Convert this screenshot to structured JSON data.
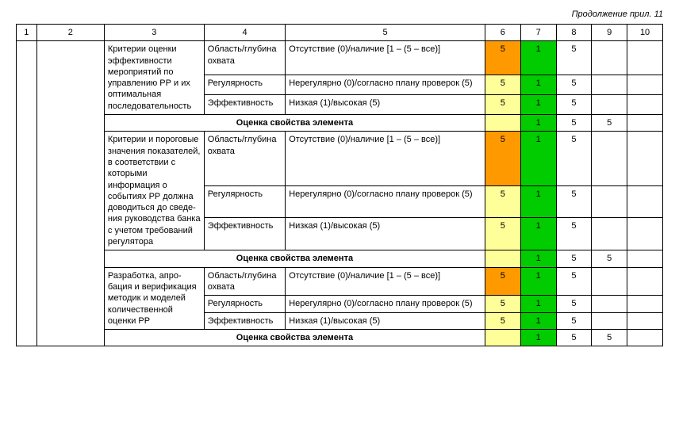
{
  "header_note": "Продолжение прил. 11",
  "col_heads": [
    "1",
    "2",
    "3",
    "4",
    "5",
    "6",
    "7",
    "8",
    "9",
    "10"
  ],
  "summary_label": "Оценка свойства элемента",
  "criteria_labels": {
    "scope": "Область/глуби­на охвата",
    "regularity": "Регулярность",
    "effectiveness": "Эффективность"
  },
  "criteria_desc": {
    "scope": "Отсутствие (0)/наличие [1 – (5 – все)]",
    "regularity": "Нерегулярно (0)/согласно плану про­верок (5)",
    "effectiveness": "Низкая (1)/высокая (5)"
  },
  "blocks": [
    {
      "key": "b1",
      "col3": "Критерии оцен­ки эффективно­сти мероприя­тий по управле­нию РР и их оптимальная последователь­ность",
      "rows": [
        {
          "c6": "5",
          "c7": "1",
          "c8": "5",
          "c9": "",
          "c10": "",
          "c6_color": "orange",
          "c7_color": "green"
        },
        {
          "c6": "5",
          "c7": "1",
          "c8": "5",
          "c9": "",
          "c10": "",
          "c6_color": "yellow",
          "c7_color": "green"
        },
        {
          "c6": "5",
          "c7": "1",
          "c8": "5",
          "c9": "",
          "c10": "",
          "c6_color": "yellow",
          "c7_color": "green"
        }
      ],
      "summary": {
        "c6": "",
        "c7": "1",
        "c8": "5",
        "c9": "5",
        "c10": "",
        "c6_color": "yellow",
        "c7_color": "green"
      }
    },
    {
      "key": "b2",
      "col3": "Критерии и по­роговые значе­ния показате­лей, в соответ­ствии с которы­ми информация о событиях РР должна дово­диться до сведе­ния руководства банка с учетом требований регулятора",
      "rows": [
        {
          "c6": "5",
          "c7": "1",
          "c8": "5",
          "c9": "",
          "c10": "",
          "c6_color": "orange",
          "c7_color": "green"
        },
        {
          "c6": "5",
          "c7": "1",
          "c8": "5",
          "c9": "",
          "c10": "",
          "c6_color": "yellow",
          "c7_color": "green"
        },
        {
          "c6": "5",
          "c7": "1",
          "c8": "5",
          "c9": "",
          "c10": "",
          "c6_color": "yellow",
          "c7_color": "green"
        }
      ],
      "summary": {
        "c6": "",
        "c7": "1",
        "c8": "5",
        "c9": "5",
        "c10": "",
        "c6_color": "yellow",
        "c7_color": "green"
      }
    },
    {
      "key": "b3",
      "col3": "Разработка, апро­бация и верифи­кация методик и моделей количе­ственной оценки РР",
      "rows": [
        {
          "c6": "5",
          "c7": "1",
          "c8": "5",
          "c9": "",
          "c10": "",
          "c6_color": "orange",
          "c7_color": "green"
        },
        {
          "c6": "5",
          "c7": "1",
          "c8": "5",
          "c9": "",
          "c10": "",
          "c6_color": "yellow",
          "c7_color": "green"
        },
        {
          "c6": "5",
          "c7": "1",
          "c8": "5",
          "c9": "",
          "c10": "",
          "c6_color": "yellow",
          "c7_color": "green"
        }
      ],
      "summary": {
        "c6": "",
        "c7": "1",
        "c8": "5",
        "c9": "5",
        "c10": "",
        "c6_color": "yellow",
        "c7_color": "green"
      }
    }
  ]
}
